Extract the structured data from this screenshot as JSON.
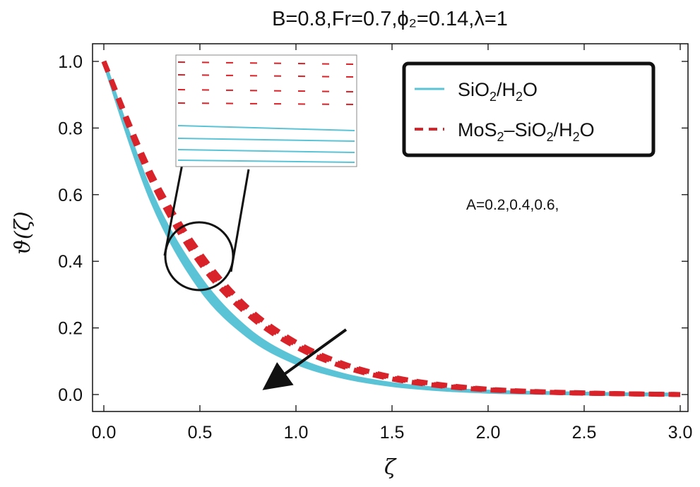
{
  "chart_data": {
    "type": "line",
    "title": "B=0.8,Fr=0.7,ϕ₂=0.14,λ=1",
    "xlabel": "ζ",
    "ylabel": "ϑ(ζ)",
    "xlim": [
      0,
      3
    ],
    "ylim": [
      0,
      1
    ],
    "x_ticks": [
      "0.0",
      "0.5",
      "1.0",
      "1.5",
      "2.0",
      "2.5",
      "3.0"
    ],
    "y_ticks": [
      "0.0",
      "0.2",
      "0.4",
      "0.6",
      "0.8",
      "1.0"
    ],
    "legend_position": "top-right",
    "annotation": "A=0.2,0.4,0.6,",
    "x": [
      0,
      0.25,
      0.5,
      0.75,
      1.0,
      1.25,
      1.5,
      1.75,
      2.0,
      2.25,
      2.5,
      2.75,
      3.0
    ],
    "series": [
      {
        "name": "SiO₂/H₂O",
        "legend": [
          "SiO",
          "2",
          "/H",
          "2",
          "O"
        ],
        "color": "#5bc3d6",
        "style": "solid",
        "values": [
          1.0,
          0.58,
          0.32,
          0.175,
          0.095,
          0.052,
          0.028,
          0.015,
          0.008,
          0.005,
          0.003,
          0.001,
          0.0
        ]
      },
      {
        "color": "#5bc3d6",
        "style": "solid",
        "values": [
          1.0,
          0.59,
          0.335,
          0.185,
          0.102,
          0.056,
          0.03,
          0.016,
          0.009,
          0.005,
          0.003,
          0.001,
          0.0
        ]
      },
      {
        "color": "#5bc3d6",
        "style": "solid",
        "values": [
          1.0,
          0.6,
          0.35,
          0.195,
          0.108,
          0.059,
          0.032,
          0.017,
          0.009,
          0.005,
          0.003,
          0.001,
          0.0
        ]
      },
      {
        "name": "MoS₂–SiO₂/H₂O",
        "legend": [
          "MoS",
          "2",
          "–SiO",
          "2",
          "/H",
          "2",
          "O"
        ],
        "color": "#d8232a",
        "style": "dashed",
        "values": [
          1.0,
          0.64,
          0.395,
          0.24,
          0.143,
          0.083,
          0.047,
          0.026,
          0.014,
          0.008,
          0.004,
          0.002,
          0.0
        ]
      },
      {
        "color": "#d8232a",
        "style": "dashed",
        "values": [
          1.0,
          0.65,
          0.41,
          0.25,
          0.15,
          0.088,
          0.05,
          0.028,
          0.015,
          0.008,
          0.004,
          0.002,
          0.0
        ]
      },
      {
        "color": "#d8232a",
        "style": "dashed",
        "values": [
          1.0,
          0.66,
          0.425,
          0.26,
          0.157,
          0.092,
          0.053,
          0.03,
          0.016,
          0.009,
          0.005,
          0.002,
          0.0
        ]
      }
    ]
  }
}
